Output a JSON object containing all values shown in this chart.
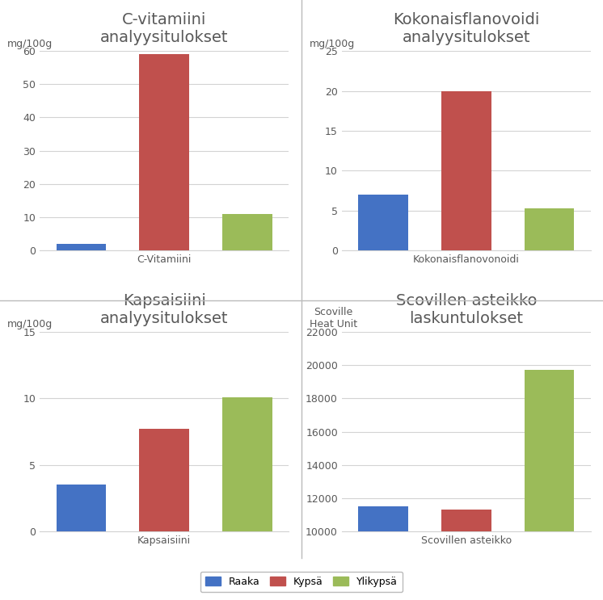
{
  "subplots": [
    {
      "title": "C-vitamiini\nanalyysitulokset",
      "ylabel": "mg/100g",
      "xlabel": "C-Vitamiini",
      "values": [
        2,
        59,
        11
      ],
      "ylim": [
        0,
        60
      ],
      "yticks": [
        0,
        10,
        20,
        30,
        40,
        50,
        60
      ],
      "bar_width": 0.6,
      "positions": [
        1,
        2,
        3
      ]
    },
    {
      "title": "Kokonaisflanovoidi\nanalyysitulokset",
      "ylabel": "mg/100g",
      "xlabel": "Kokonaisflanovonoidi",
      "values": [
        7,
        20,
        5.3
      ],
      "ylim": [
        0,
        25
      ],
      "yticks": [
        0,
        5,
        10,
        15,
        20,
        25
      ],
      "bar_width": 0.6,
      "positions": [
        1,
        2,
        3
      ]
    },
    {
      "title": "Kapsaisiini\nanalyysitulokset",
      "ylabel": "mg/100g",
      "xlabel": "Kapsaisiini",
      "values": [
        3.5,
        7.7,
        10.1
      ],
      "ylim": [
        0,
        15
      ],
      "yticks": [
        0,
        5,
        10,
        15
      ],
      "bar_width": 0.6,
      "positions": [
        1,
        2,
        3
      ]
    },
    {
      "title": "Scovillen asteikko\nlaskuntulokset",
      "ylabel": "Scoville\nHeat Unit",
      "xlabel": "Scovillen asteikko",
      "values": [
        11500,
        11300,
        19700
      ],
      "ylim": [
        10000,
        22000
      ],
      "yticks": [
        10000,
        12000,
        14000,
        16000,
        18000,
        20000,
        22000
      ],
      "bar_width": 0.6,
      "positions": [
        1,
        2,
        3
      ]
    }
  ],
  "colors": [
    "#4472C4",
    "#C0504D",
    "#9BBB59"
  ],
  "legend_labels": [
    "Raaka",
    "Kypsä",
    "Ylikypsä"
  ],
  "background_color": "#ffffff",
  "grid_color": "#d3d3d3",
  "title_fontsize": 14,
  "label_fontsize": 9,
  "tick_fontsize": 9,
  "ylabel_fontsize": 9,
  "title_color": "#595959",
  "tick_color": "#595959"
}
